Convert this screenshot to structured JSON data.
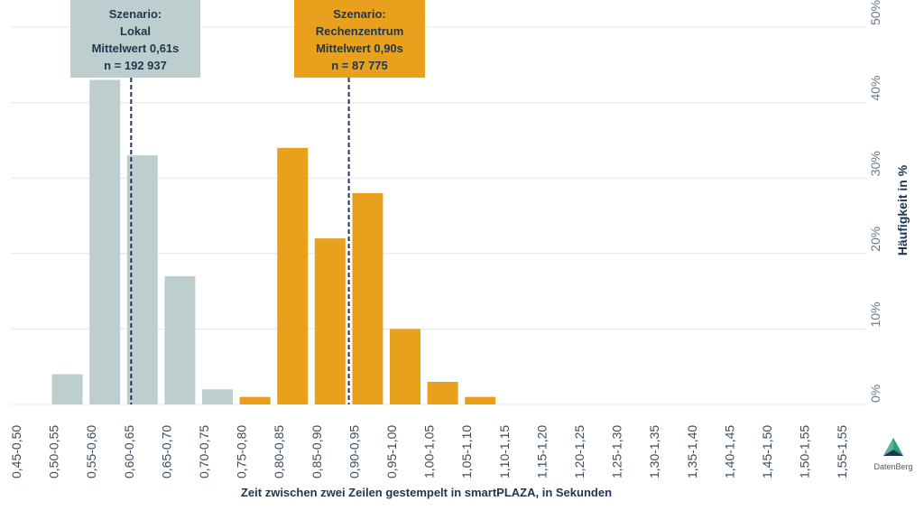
{
  "chart_data": {
    "type": "bar",
    "categories": [
      "0,45-0,50",
      "0,50-0,55",
      "0,55-0,60",
      "0,60-0,65",
      "0,65-0,70",
      "0,70-0,75",
      "0,75-0,80",
      "0,80-0,85",
      "0,85-0,90",
      "0,90-0,95",
      "0,95-1,00",
      "1,00-1,05",
      "1,05-1,10",
      "1,10-1,15",
      "1,15-1,20",
      "1,20-1,25",
      "1,25-1,30",
      "1,30-1,35",
      "1,35-1,40",
      "1,40-1,45",
      "1,45-1,50",
      "1,50-1,55",
      "1,55-1,55"
    ],
    "series": [
      {
        "values": [
          0,
          4,
          43,
          33,
          17,
          2,
          0,
          0,
          0,
          0,
          0,
          0,
          0,
          0,
          0,
          0,
          0,
          0,
          0,
          0,
          0,
          0,
          0
        ]
      },
      {
        "values": [
          0,
          0,
          0,
          0,
          0,
          0,
          1,
          34,
          22,
          28,
          10,
          3,
          1,
          0,
          0,
          0,
          0,
          0,
          0,
          0,
          0,
          0,
          0
        ]
      }
    ],
    "colors": [
      "#bccfce",
      "#e9a01c"
    ],
    "ylim": [
      0,
      50
    ],
    "yticks": [
      "0%",
      "10%",
      "20%",
      "30%",
      "40%",
      "50%"
    ],
    "ytick_values": [
      0,
      10,
      20,
      30,
      40,
      50
    ],
    "y_axis_side": "right",
    "grid": true,
    "xlabel": "Zeit zwischen zwei Zeilen gestempelt in smartPLAZA, in Sekunden",
    "ylabel": "Häufigkeit in %",
    "mean_lines": [
      {
        "value": 0.61,
        "color": "#1f3650",
        "style": "dashed"
      },
      {
        "value": 0.9,
        "color": "#1f3650",
        "style": "dashed"
      }
    ],
    "annotations": [
      {
        "lines": [
          "Szenario:",
          "Lokal",
          "Mittelwert 0,61s",
          "n = 192 937"
        ],
        "color": "#bccfce"
      },
      {
        "lines": [
          "Szenario:",
          "Rechenzentrum",
          "Mittelwert 0,90s",
          "n = 87 775"
        ],
        "color": "#e9a01c"
      }
    ]
  },
  "logo": {
    "text": "DatenBerg"
  }
}
